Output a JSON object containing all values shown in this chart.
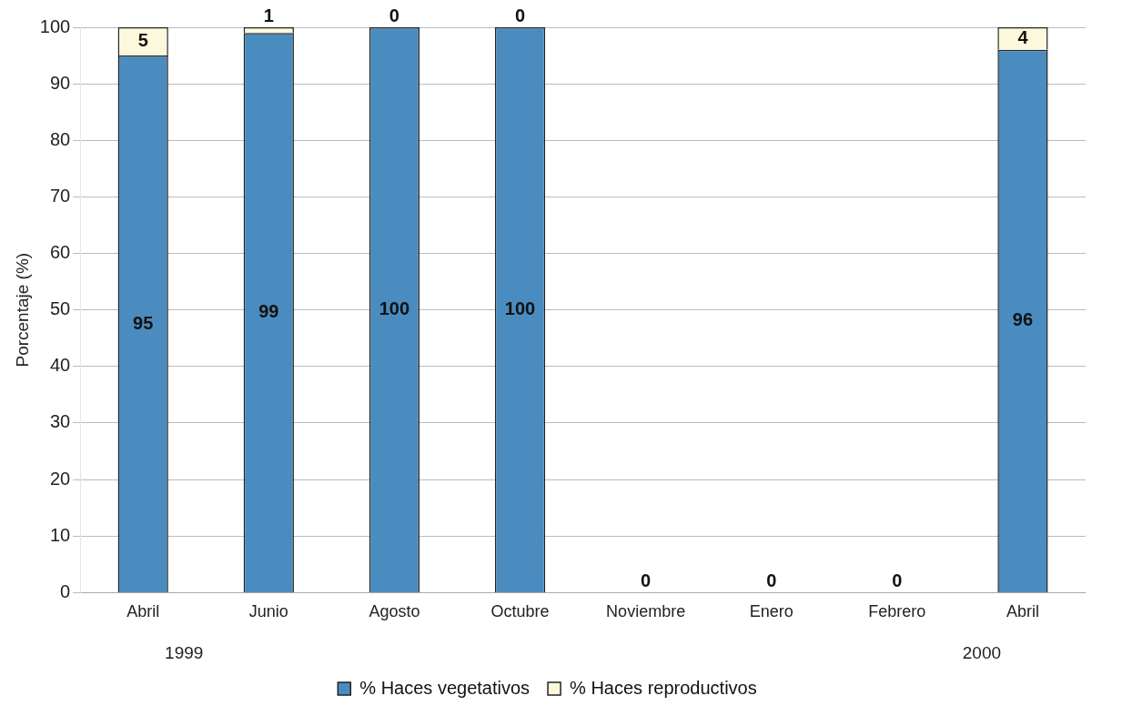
{
  "chart_data": {
    "type": "bar",
    "ylabel": "Porcentaje (%)",
    "stacked": true,
    "categories": [
      "Abril",
      "Junio",
      "Agosto",
      "Octubre",
      "Noviembre",
      "Enero",
      "Febrero",
      "Abril"
    ],
    "series": [
      {
        "name": "% Haces vegetativos",
        "color": "#4a8cc0",
        "values": [
          95,
          99,
          100,
          100,
          0,
          0,
          0,
          96
        ],
        "value_labels": [
          "95",
          "99",
          "100",
          "100",
          "0",
          "0",
          "0",
          "96"
        ]
      },
      {
        "name": "% Haces reproductivos",
        "color": "#fbf8dc",
        "values": [
          5,
          1,
          0,
          0,
          0,
          0,
          0,
          4
        ],
        "value_labels": [
          "5",
          "1",
          "0",
          "0",
          null,
          null,
          null,
          "4"
        ]
      }
    ],
    "ylim": [
      0,
      100
    ],
    "yticks": [
      0,
      10,
      20,
      30,
      40,
      50,
      60,
      70,
      80,
      90,
      100
    ],
    "grid": "y",
    "legend": "bottom",
    "annotations": [
      "1999",
      "2000"
    ]
  }
}
